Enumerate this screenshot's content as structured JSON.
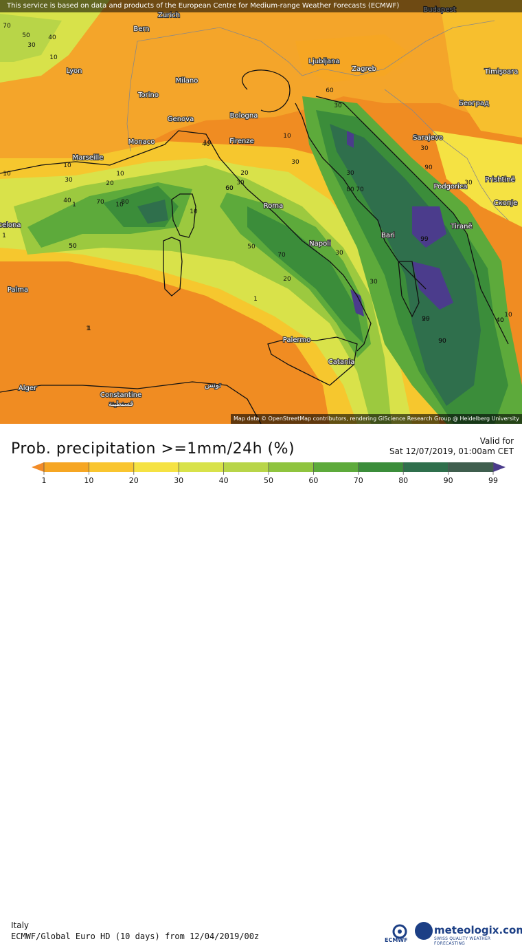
{
  "banner": "This service is based on data and products of the European Centre for Medium-range Weather Forecasts (ECMWF)",
  "attribution": "Map data © OpenStreetMap contributors, rendering GIScience Research Group @ Heidelberg University",
  "title": "Prob. precipitation >=1mm/24h",
  "title_unit": "(%)",
  "valid_label": "Valid for",
  "valid_date": "Sat 12/07/2019, 01:00am CET",
  "region": "Italy",
  "model_line": "ECMWF/Global Euro HD (10 days) from 12/04/2019/00z",
  "brand": {
    "name": "meteologix.com",
    "tagline": "SWISS QUALITY WEATHER FORECASTING",
    "ecmwf": "ECMWF"
  },
  "colorbar": {
    "labels": [
      "1",
      "10",
      "20",
      "30",
      "40",
      "50",
      "60",
      "70",
      "80",
      "90",
      "99"
    ],
    "colors": [
      "#f28c28",
      "#f6a623",
      "#f9c52f",
      "#f5e243",
      "#d8e24a",
      "#b8d548",
      "#8fc43e",
      "#5daa3b",
      "#3b8d3a",
      "#2f6f4c",
      "#3f5e4e",
      "#4b3c8c"
    ]
  },
  "cities": [
    {
      "name": "Bern"
    },
    {
      "name": "Zurich"
    },
    {
      "name": "Budapest"
    },
    {
      "name": "Lyon"
    },
    {
      "name": "Milano"
    },
    {
      "name": "Ljubljana"
    },
    {
      "name": "Zagreb"
    },
    {
      "name": "Timişoara"
    },
    {
      "name": "Torino"
    },
    {
      "name": "Bologna"
    },
    {
      "name": "Београд"
    },
    {
      "name": "Genova"
    },
    {
      "name": "Monaco"
    },
    {
      "name": "Firenze"
    },
    {
      "name": "Sarajevo"
    },
    {
      "name": "Marseille"
    },
    {
      "name": "Podgorica"
    },
    {
      "name": "Prishtinë"
    },
    {
      "name": "Roma"
    },
    {
      "name": "Скопје"
    },
    {
      "name": "celona"
    },
    {
      "name": "Tiranë"
    },
    {
      "name": "Bari"
    },
    {
      "name": "Napoli"
    },
    {
      "name": "Palma"
    },
    {
      "name": "Palermo"
    },
    {
      "name": "Catania"
    },
    {
      "name": "Alger"
    },
    {
      "name": "Constantine"
    },
    {
      "name": "قسنطينة"
    },
    {
      "name": "تونس"
    }
  ],
  "contour_labels": [
    "70",
    "50",
    "30",
    "40",
    "10",
    "10",
    "1",
    "1",
    "10",
    "20",
    "10",
    "10",
    "10",
    "30",
    "40",
    "1",
    "60",
    "30",
    "40",
    "20",
    "10",
    "30",
    "70",
    "80",
    "20",
    "50",
    "30",
    "10",
    "80",
    "70",
    "60",
    "30",
    "30",
    "90",
    "30",
    "99",
    "30",
    "10",
    "50",
    "70",
    "90",
    "20",
    "1",
    "30",
    "99",
    "99",
    "40",
    "90",
    "1",
    "40",
    "60",
    "50"
  ]
}
